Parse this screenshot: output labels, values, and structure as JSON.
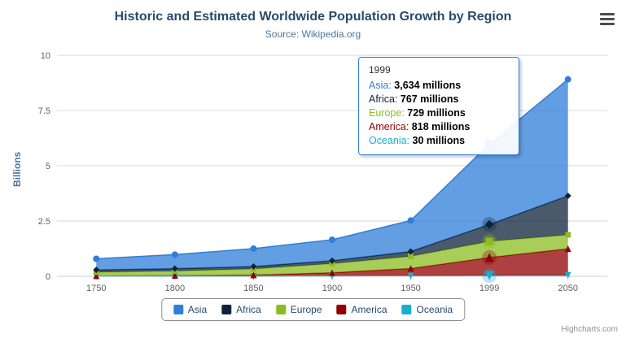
{
  "chart_data": {
    "type": "area",
    "stacked": true,
    "title": "Historic and Estimated Worldwide Population Growth by Region",
    "subtitle": "Source: Wikipedia.org",
    "ylabel": "Billions",
    "ylim": [
      0,
      10
    ],
    "yticks": [
      0,
      2.5,
      5,
      7.5,
      10
    ],
    "ytick_labels": [
      "0",
      "2.5",
      "5",
      "7.5",
      "10"
    ],
    "categories": [
      "1750",
      "1800",
      "1850",
      "1900",
      "1950",
      "1999",
      "2050"
    ],
    "unit": "millions",
    "grid": true,
    "legend_position": "bottom-center",
    "series": [
      {
        "name": "Asia",
        "color": "#2f7ed8",
        "marker": "circle",
        "values": [
          502,
          635,
          809,
          947,
          1402,
          3634,
          5268
        ]
      },
      {
        "name": "Africa",
        "color": "#0d233a",
        "marker": "diamond",
        "values": [
          106,
          107,
          111,
          133,
          221,
          767,
          1766
        ]
      },
      {
        "name": "Europe",
        "color": "#8bbc21",
        "marker": "square",
        "values": [
          163,
          203,
          276,
          408,
          547,
          729,
          628
        ]
      },
      {
        "name": "America",
        "color": "#910000",
        "marker": "triangle",
        "values": [
          18,
          31,
          54,
          156,
          339,
          818,
          1201
        ]
      },
      {
        "name": "Oceania",
        "color": "#1aadce",
        "marker": "triangle-down",
        "values": [
          2,
          2,
          2,
          6,
          13,
          30,
          46
        ]
      }
    ],
    "stack_order_bottom_to_top": [
      "Oceania",
      "America",
      "Europe",
      "Africa",
      "Asia"
    ],
    "tooltip": {
      "header": "1999",
      "hover_category": "1999",
      "rows": [
        {
          "name": "Asia",
          "value": "3,634",
          "suffix": " millions"
        },
        {
          "name": "Africa",
          "value": "767",
          "suffix": " millions"
        },
        {
          "name": "Europe",
          "value": "729",
          "suffix": " millions"
        },
        {
          "name": "America",
          "value": "818",
          "suffix": " millions"
        },
        {
          "name": "Oceania",
          "value": "30",
          "suffix": " millions"
        }
      ]
    },
    "credits": "Highcharts.com",
    "colors": {
      "title": "#274b6d",
      "subtitle": "#4d759e",
      "axis_labels": "#606060",
      "gridline": "#D8D8D8",
      "axis_line": "#C0D0E0"
    }
  }
}
